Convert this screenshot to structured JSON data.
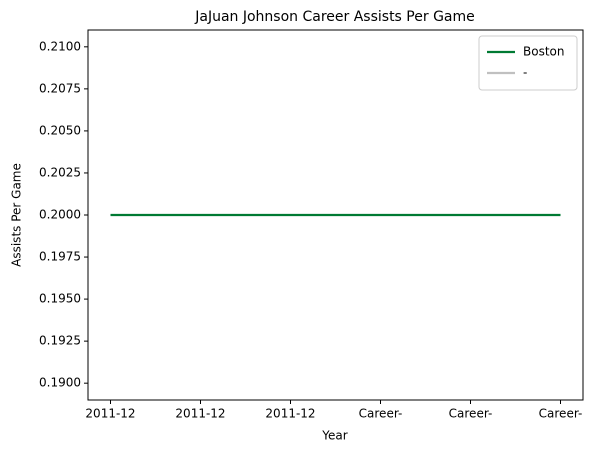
{
  "chart_data": {
    "type": "line",
    "title": "JaJuan Johnson Career Assists Per Game",
    "x_label": "Year",
    "y_label": "Assists Per Game",
    "categories": [
      "2011-12",
      "2011-12",
      "2011-12",
      "Career-",
      "Career-",
      "Career-"
    ],
    "series": [
      {
        "name": "Boston",
        "color": "#007a33",
        "values": [
          0.2,
          0.2,
          0.2,
          0.2,
          0.2,
          0.2
        ]
      },
      {
        "name": "-",
        "color": "#c0c0c0",
        "values": [
          null,
          null,
          null,
          null,
          null,
          null
        ]
      }
    ],
    "ylim": [
      0.189,
      0.211
    ],
    "yticks": [
      {
        "value": 0.19,
        "label": "0.1900"
      },
      0.1925,
      {
        "value": 0.195,
        "label": "0.1950"
      },
      0.1975,
      {
        "value": 0.2,
        "label": "0.2000"
      },
      0.2025,
      {
        "value": 0.205,
        "label": "0.2050"
      },
      0.2075,
      {
        "value": 0.21,
        "label": "0.2100"
      }
    ],
    "legend": "upper right",
    "grid": false
  }
}
